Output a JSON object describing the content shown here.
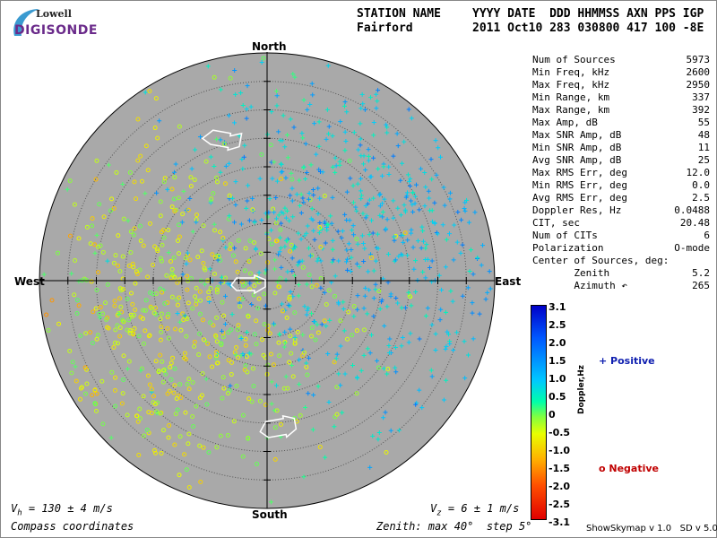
{
  "logo": {
    "line1": "Lowell",
    "line2": "DIGISONDE",
    "accent": "#6a2a8a",
    "swoosh": "#3a9ad0"
  },
  "header": {
    "row1_station": "STATION NAME",
    "row1_cols": "YYYY DATE  DDD HHMMSS AXN PPS IGP",
    "row2_station": "Fairford",
    "row2_cols": "2011 Oct10 283 030800 417 100 -8E"
  },
  "compass": {
    "north": "North",
    "south": "South",
    "east": "East",
    "west": "West"
  },
  "stats": [
    {
      "label": "Num of Sources",
      "value": "5973"
    },
    {
      "label": "Min Freq, kHz",
      "value": "2600"
    },
    {
      "label": "Max Freq, kHz",
      "value": "2950"
    },
    {
      "label": "Min Range, km",
      "value": "337"
    },
    {
      "label": "Max Range, km",
      "value": "392"
    },
    {
      "label": "Max Amp, dB",
      "value": "55"
    },
    {
      "label": "Max SNR Amp, dB",
      "value": "48"
    },
    {
      "label": "Min SNR Amp, dB",
      "value": "11"
    },
    {
      "label": "Avg SNR Amp, dB",
      "value": "25"
    },
    {
      "label": "Max RMS Err, deg",
      "value": "12.0"
    },
    {
      "label": "Min RMS Err, deg",
      "value": "0.0"
    },
    {
      "label": "Avg RMS Err, deg",
      "value": "2.5"
    },
    {
      "label": "Doppler Res, Hz",
      "value": "0.0488"
    },
    {
      "label": "CIT, sec",
      "value": "20.48"
    },
    {
      "label": "Num of CITs",
      "value": "6"
    },
    {
      "label": "Polarization",
      "value": "O-mode"
    },
    {
      "label": "Center of Sources, deg:",
      "value": ""
    },
    {
      "label": "       Zenith",
      "value": "5.2"
    },
    {
      "label": "       Azimuth ↶",
      "value": "265"
    }
  ],
  "colorbar": {
    "ticks": [
      "3.1",
      "2.5",
      "2.0",
      "1.5",
      "1.0",
      "0.5",
      "0",
      "-0.5",
      "-1.0",
      "-1.5",
      "-2.0",
      "-2.5",
      "-3.1"
    ],
    "label": "Doppler,Hz",
    "min": -3.1,
    "max": 3.1
  },
  "legend": {
    "positive": "+ Positive",
    "negative": "o Negative",
    "positive_color": "#1020b0",
    "negative_color": "#c00000"
  },
  "footer": {
    "vh": "V",
    "vh_sub": "h",
    "vh_rest": " = 130 ± 4 m/s",
    "vz": "V",
    "vz_sub": "z",
    "vz_rest": " = 6 ± 1 m/s",
    "coords": "Compass coordinates",
    "zenith": "Zenith: max 40°  step 5°",
    "credit": "ShowSkymap v 1.0   SD v 5.0"
  },
  "plot": {
    "background": "#a9a9a9",
    "max_zenith_deg": 40,
    "step_deg": 5,
    "source_count": 5973
  }
}
